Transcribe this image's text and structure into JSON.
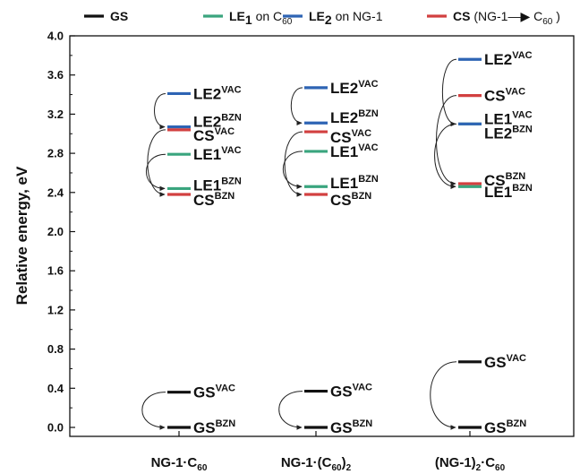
{
  "chart_data": {
    "type": "energy-level diagram",
    "ylabel": "Relative energy, eV",
    "ylim": [
      0.0,
      4.0
    ],
    "yticks": [
      "0.0",
      "0.4",
      "0.8",
      "1.2",
      "1.6",
      "2.0",
      "2.4",
      "2.8",
      "3.2",
      "3.6",
      "4.0"
    ],
    "colors": {
      "GS": "#111111",
      "LE1": "#3aa57e",
      "LE2": "#2e64b4",
      "CS": "#d24040"
    },
    "legend": [
      {
        "key": "GS",
        "bold": "GS",
        "text": "",
        "color": "#111111"
      },
      {
        "key": "LE1",
        "bold": "LE",
        "sub": "1",
        "text": " on C",
        "text_sub": "60",
        "tail": "",
        "color": "#3aa57e"
      },
      {
        "key": "LE2",
        "bold": "LE",
        "sub": "2",
        "text": " on NG-1",
        "text_sub": "",
        "tail": "",
        "color": "#2e64b4"
      },
      {
        "key": "CS",
        "bold": "CS",
        "text": " (NG-1—▶ C",
        "text_sub": "60",
        "tail": " )",
        "color": "#d24040"
      }
    ],
    "categories": [
      {
        "main": "NG-1·C",
        "sub": "60",
        "tail": ""
      },
      {
        "main": "NG-1·(C",
        "sub": "60",
        "tail": ")",
        "sub2": "2"
      },
      {
        "main": "(NG-1)",
        "sub": "2",
        "tail": "·C",
        "sub2": "60"
      }
    ],
    "series": [
      {
        "category": 0,
        "levels": [
          {
            "state": "LE2",
            "value": 3.41,
            "label": "LE2",
            "sup": "VAC"
          },
          {
            "state": "LE2",
            "value": 3.07,
            "label": "LE2",
            "sup": "BZN"
          },
          {
            "state": "CS",
            "value": 3.04,
            "label": "CS",
            "sup": "VAC"
          },
          {
            "state": "LE1",
            "value": 2.79,
            "label": "LE1",
            "sup": "VAC"
          },
          {
            "state": "LE1",
            "value": 2.44,
            "label": "LE1",
            "sup": "BZN"
          },
          {
            "state": "CS",
            "value": 2.38,
            "label": "CS",
            "sup": "BZN"
          },
          {
            "state": "GS",
            "value": 0.36,
            "label": "GS",
            "sup": "VAC"
          },
          {
            "state": "GS",
            "value": 0.0,
            "label": "GS",
            "sup": "BZN"
          }
        ],
        "arrows": [
          [
            3.41,
            3.07
          ],
          [
            3.04,
            2.38
          ],
          [
            2.79,
            2.44
          ],
          [
            0.36,
            0.0
          ]
        ]
      },
      {
        "category": 1,
        "levels": [
          {
            "state": "LE2",
            "value": 3.47,
            "label": "LE2",
            "sup": "VAC"
          },
          {
            "state": "LE2",
            "value": 3.11,
            "label": "LE2",
            "sup": "BZN"
          },
          {
            "state": "CS",
            "value": 3.02,
            "label": "CS",
            "sup": "VAC"
          },
          {
            "state": "LE1",
            "value": 2.82,
            "label": "LE1",
            "sup": "VAC"
          },
          {
            "state": "LE1",
            "value": 2.46,
            "label": "LE1",
            "sup": "BZN"
          },
          {
            "state": "CS",
            "value": 2.38,
            "label": "CS",
            "sup": "BZN"
          },
          {
            "state": "GS",
            "value": 0.37,
            "label": "GS",
            "sup": "VAC"
          },
          {
            "state": "GS",
            "value": 0.0,
            "label": "GS",
            "sup": "BZN"
          }
        ],
        "arrows": [
          [
            3.47,
            3.11
          ],
          [
            3.02,
            2.38
          ],
          [
            2.82,
            2.46
          ],
          [
            0.37,
            0.0
          ]
        ]
      },
      {
        "category": 2,
        "levels": [
          {
            "state": "LE2",
            "value": 3.76,
            "label": "LE2",
            "sup": "VAC"
          },
          {
            "state": "CS",
            "value": 3.39,
            "label": "CS",
            "sup": "VAC"
          },
          {
            "state": "LE1",
            "value": 3.1,
            "label": "LE1",
            "sup": "VAC"
          },
          {
            "state": "LE2",
            "value": 3.1,
            "label": "LE2",
            "sup": "BZN"
          },
          {
            "state": "CS",
            "value": 2.49,
            "label": "CS",
            "sup": "BZN"
          },
          {
            "state": "LE1",
            "value": 2.46,
            "label": "LE1",
            "sup": "BZN"
          },
          {
            "state": "GS",
            "value": 0.67,
            "label": "GS",
            "sup": "VAC"
          },
          {
            "state": "GS",
            "value": 0.0,
            "label": "GS",
            "sup": "BZN"
          }
        ],
        "arrows": [
          [
            3.76,
            3.1
          ],
          [
            3.39,
            2.49
          ],
          [
            3.1,
            2.46
          ],
          [
            0.67,
            0.0
          ]
        ]
      }
    ]
  }
}
